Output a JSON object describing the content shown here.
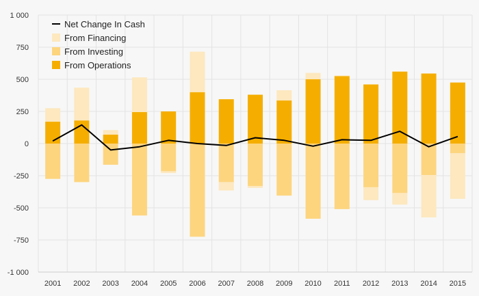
{
  "chart_data": {
    "type": "bar",
    "subtype": "stacked-diverging-bar-with-line",
    "title": "",
    "xlabel": "",
    "ylabel": "",
    "ylim": [
      -1000,
      1000
    ],
    "yticks": [
      1000,
      750,
      500,
      250,
      0,
      -250,
      -500,
      -750,
      -1000
    ],
    "ytick_labels": [
      "1 000",
      "750",
      "500",
      "250",
      "0",
      "-250",
      "-500",
      "-750",
      "-1 000"
    ],
    "categories": [
      "2001",
      "2002",
      "2003",
      "2004",
      "2005",
      "2006",
      "2007",
      "2008",
      "2009",
      "2010",
      "2011",
      "2012",
      "2013",
      "2014",
      "2015"
    ],
    "series": [
      {
        "name": "From Operations",
        "type": "bar",
        "color": "#f5ae00",
        "values": [
          170,
          180,
          70,
          245,
          250,
          400,
          345,
          380,
          335,
          500,
          525,
          460,
          560,
          545,
          475
        ]
      },
      {
        "name": "From Investing",
        "type": "bar",
        "color": "#fdd57f",
        "values": [
          -275,
          -300,
          -165,
          -560,
          -215,
          -725,
          -300,
          -330,
          -405,
          -585,
          -510,
          -340,
          -385,
          -245,
          -75
        ]
      },
      {
        "name": "From Financing",
        "type": "bar",
        "color": "#fde8bf",
        "values": [
          105,
          255,
          35,
          270,
          -15,
          315,
          -65,
          -15,
          80,
          50,
          5,
          -100,
          -90,
          -330,
          -355
        ]
      },
      {
        "name": "Net Change In Cash",
        "type": "line",
        "color": "#000000",
        "values": [
          20,
          145,
          -50,
          -25,
          25,
          0,
          -15,
          45,
          25,
          -20,
          30,
          25,
          95,
          -25,
          55
        ]
      }
    ],
    "legend": {
      "position": "top-left",
      "items": [
        {
          "label": "Net Change In Cash",
          "kind": "line",
          "color": "#000000"
        },
        {
          "label": "From Financing",
          "kind": "box",
          "color": "#fde8bf"
        },
        {
          "label": "From Investing",
          "kind": "box",
          "color": "#fdd57f"
        },
        {
          "label": "From Operations",
          "kind": "box",
          "color": "#f5ae00"
        }
      ]
    },
    "grid": true
  }
}
